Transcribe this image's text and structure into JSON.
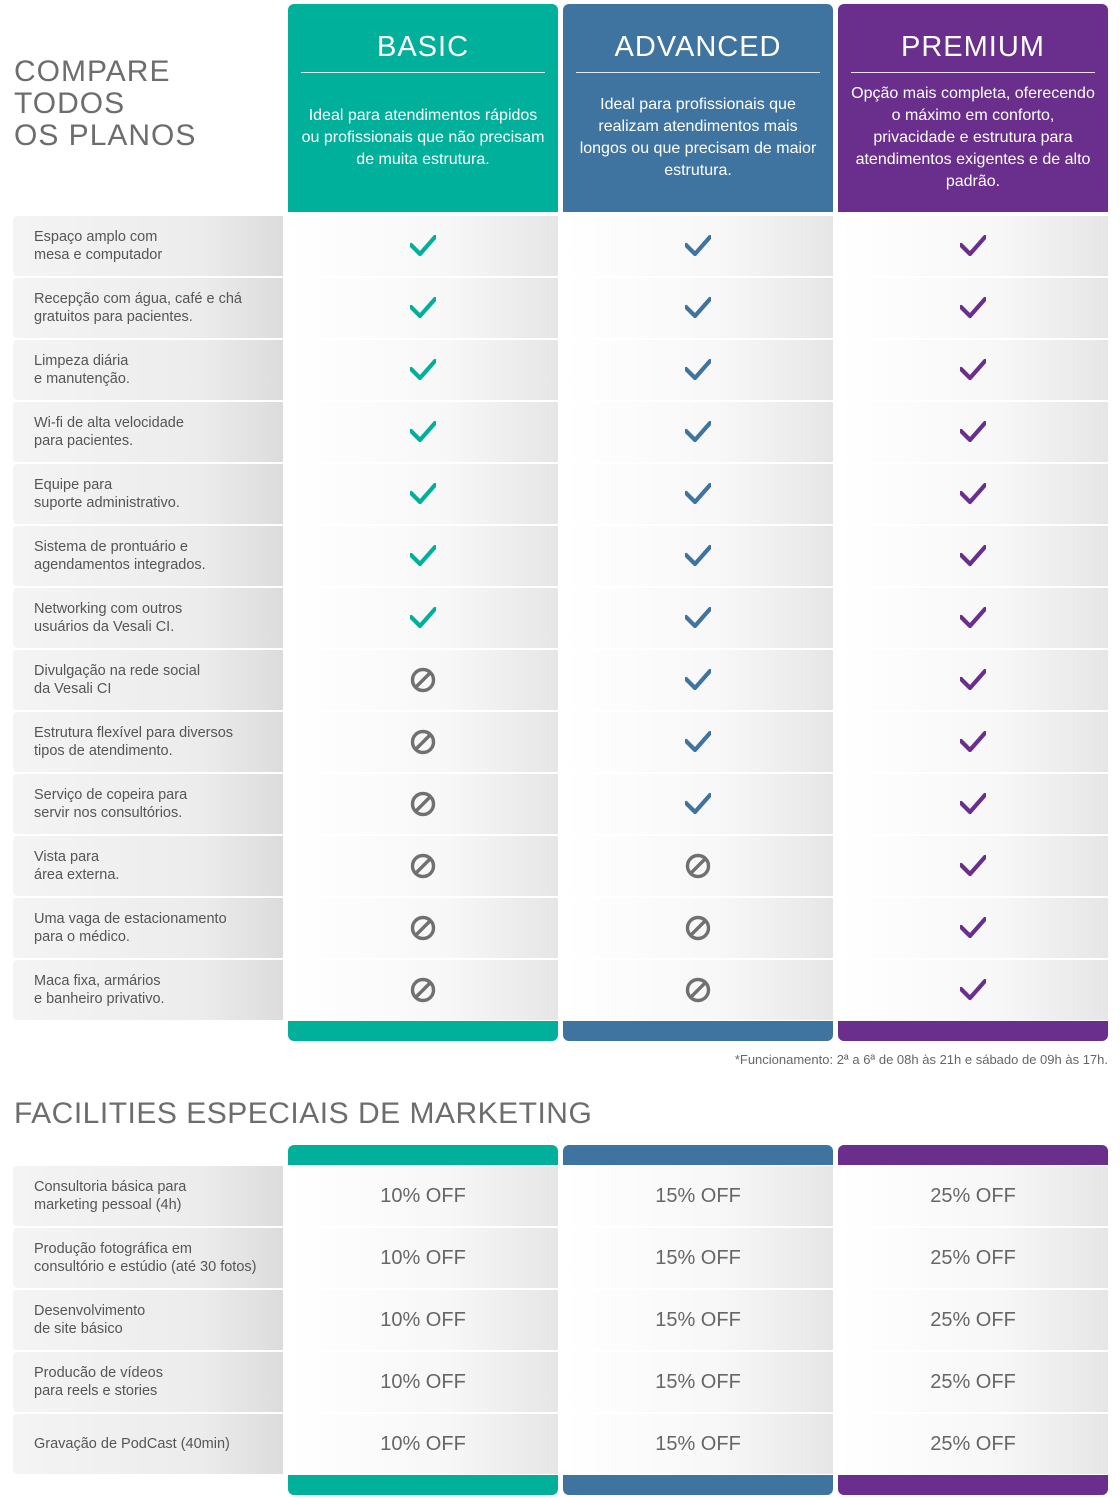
{
  "colors": {
    "basic": "#00b09b",
    "advanced": "#3f74a1",
    "premium": "#6a2e8c",
    "no": "#707070"
  },
  "compare_title": "COMPARE\nTODOS\nOS PLANOS",
  "plans": [
    {
      "key": "basic",
      "name": "BASIC",
      "desc": "Ideal para atendimentos rápidos ou profissionais que não precisam de muita estrutura."
    },
    {
      "key": "advanced",
      "name": "ADVANCED",
      "desc": "Ideal para profissionais que realizam atendimentos mais longos ou que precisam de maior estrutura."
    },
    {
      "key": "premium",
      "name": "PREMIUM",
      "desc": "Opção mais completa, oferecendo o máximo em conforto, privacidade e estrutura para atendimentos exigentes e de alto padrão."
    }
  ],
  "features": [
    {
      "label": "Espaço amplo com\nmesa e computador",
      "basic": true,
      "advanced": true,
      "premium": true
    },
    {
      "label": "Recepção com água, café e chá\ngratuitos para pacientes.",
      "basic": true,
      "advanced": true,
      "premium": true
    },
    {
      "label": "Limpeza diária\ne manutenção.",
      "basic": true,
      "advanced": true,
      "premium": true
    },
    {
      "label": "Wi-fi de alta velocidade\npara pacientes.",
      "basic": true,
      "advanced": true,
      "premium": true
    },
    {
      "label": "Equipe para\nsuporte administrativo.",
      "basic": true,
      "advanced": true,
      "premium": true
    },
    {
      "label": "Sistema de prontuário e\nagendamentos integrados.",
      "basic": true,
      "advanced": true,
      "premium": true
    },
    {
      "label": "Networking com outros\nusuários da Vesali CI.",
      "basic": true,
      "advanced": true,
      "premium": true
    },
    {
      "label": "Divulgação na rede social\nda Vesali CI",
      "basic": false,
      "advanced": true,
      "premium": true
    },
    {
      "label": "Estrutura flexível para diversos\ntipos de atendimento.",
      "basic": false,
      "advanced": true,
      "premium": true
    },
    {
      "label": "Serviço de copeira para\nservir nos consultórios.",
      "basic": false,
      "advanced": true,
      "premium": true
    },
    {
      "label": "Vista para\nárea externa.",
      "basic": false,
      "advanced": false,
      "premium": true
    },
    {
      "label": "Uma vaga de estacionamento\npara o médico.",
      "basic": false,
      "advanced": false,
      "premium": true
    },
    {
      "label": "Maca fixa, armários\ne banheiro privativo.",
      "basic": false,
      "advanced": false,
      "premium": true
    }
  ],
  "note": "*Funcionamento: 2ª a 6ª de 08h às 21h e sábado de 09h às 17h.",
  "facilities_title": "FACILITIES ESPECIAIS DE MARKETING",
  "facilities": [
    {
      "label": "Consultoria básica para\nmarketing pessoal (4h)",
      "basic": "10% OFF",
      "advanced": "15% OFF",
      "premium": "25% OFF"
    },
    {
      "label": "Produção fotográfica em\nconsultório e estúdio (até 30 fotos)",
      "basic": "10% OFF",
      "advanced": "15% OFF",
      "premium": "25% OFF"
    },
    {
      "label": "Desenvolvimento\nde site básico",
      "basic": "10% OFF",
      "advanced": "15% OFF",
      "premium": "25% OFF"
    },
    {
      "label": "Producão de vídeos\npara reels e stories",
      "basic": "10% OFF",
      "advanced": "15% OFF",
      "premium": "25% OFF"
    },
    {
      "label": "Gravação de PodCast (40min)",
      "basic": "10% OFF",
      "advanced": "15% OFF",
      "premium": "25% OFF"
    }
  ]
}
